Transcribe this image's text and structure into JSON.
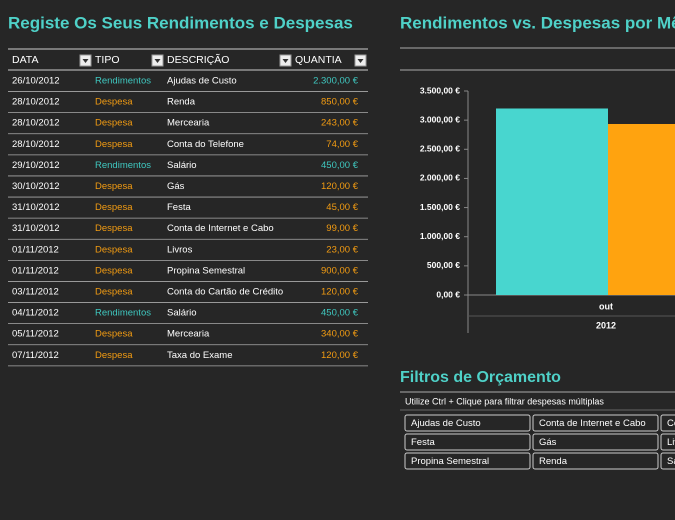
{
  "table": {
    "title": "Registe Os Seus Rendimentos e Despesas",
    "columns": [
      "DATA",
      "TIPO",
      "DESCRIÇÃO",
      "QUANTIA"
    ],
    "rows": [
      {
        "date": "26/10/2012",
        "type": "Rendimentos",
        "description": "Ajudas de Custo",
        "amount": "2.300,00 €",
        "color": "#3fc8c0"
      },
      {
        "date": "28/10/2012",
        "type": "Despesa",
        "description": "Renda",
        "amount": "850,00 €",
        "color": "#f39c12"
      },
      {
        "date": "28/10/2012",
        "type": "Despesa",
        "description": "Mercearia",
        "amount": "243,00 €",
        "color": "#f39c12"
      },
      {
        "date": "28/10/2012",
        "type": "Despesa",
        "description": "Conta do Telefone",
        "amount": "74,00 €",
        "color": "#f39c12"
      },
      {
        "date": "29/10/2012",
        "type": "Rendimentos",
        "description": "Salário",
        "amount": "450,00 €",
        "color": "#3fc8c0"
      },
      {
        "date": "30/10/2012",
        "type": "Despesa",
        "description": "Gás",
        "amount": "120,00 €",
        "color": "#f39c12"
      },
      {
        "date": "31/10/2012",
        "type": "Despesa",
        "description": "Festa",
        "amount": "45,00 €",
        "color": "#f39c12"
      },
      {
        "date": "31/10/2012",
        "type": "Despesa",
        "description": "Conta de Internet e Cabo",
        "amount": "99,00 €",
        "color": "#f39c12"
      },
      {
        "date": "01/11/2012",
        "type": "Despesa",
        "description": "Livros",
        "amount": "23,00 €",
        "color": "#f39c12"
      },
      {
        "date": "01/11/2012",
        "type": "Despesa",
        "description": "Propina Semestral",
        "amount": "900,00 €",
        "color": "#f39c12"
      },
      {
        "date": "03/11/2012",
        "type": "Despesa",
        "description": "Conta do Cartão de Crédito",
        "amount": "120,00 €",
        "color": "#f39c12"
      },
      {
        "date": "04/11/2012",
        "type": "Rendimentos",
        "description": "Salário",
        "amount": "450,00 €",
        "color": "#3fc8c0"
      },
      {
        "date": "05/11/2012",
        "type": "Despesa",
        "description": "Mercearia",
        "amount": "340,00 €",
        "color": "#f39c12"
      },
      {
        "date": "07/11/2012",
        "type": "Despesa",
        "description": "Taxa do Exame",
        "amount": "120,00 €",
        "color": "#f39c12"
      }
    ]
  },
  "chart_data": {
    "type": "bar",
    "title": "Rendimentos vs. Despesas por Mês",
    "categories": [
      "out"
    ],
    "group_label": "2012",
    "series": [
      {
        "color": "#48d6cf",
        "values": [
          3200
        ]
      },
      {
        "color": "#ffa30f",
        "values": [
          2934
        ]
      }
    ],
    "ylim": [
      0,
      3500
    ],
    "yticks": [
      {
        "value": 0,
        "label": "0,00 €"
      },
      {
        "value": 500,
        "label": "500,00 €"
      },
      {
        "value": 1000,
        "label": "1.000,00 €"
      },
      {
        "value": 1500,
        "label": "1.500,00 €"
      },
      {
        "value": 2000,
        "label": "2.000,00 €"
      },
      {
        "value": 2500,
        "label": "2.500,00 €"
      },
      {
        "value": 3000,
        "label": "3.000,00 €"
      },
      {
        "value": 3500,
        "label": "3.500,00 €"
      }
    ]
  },
  "filters": {
    "title": "Filtros de Orçamento",
    "hint": "Utilize Ctrl + Clique para filtrar despesas múltiplas",
    "buttons": [
      [
        "Ajudas de Custo",
        "Conta de Internet e Cabo",
        "Conta do Cartão de Crédito"
      ],
      [
        "Festa",
        "Gás",
        "Livros"
      ],
      [
        "Propina Semestral",
        "Renda",
        "Salário"
      ]
    ]
  }
}
